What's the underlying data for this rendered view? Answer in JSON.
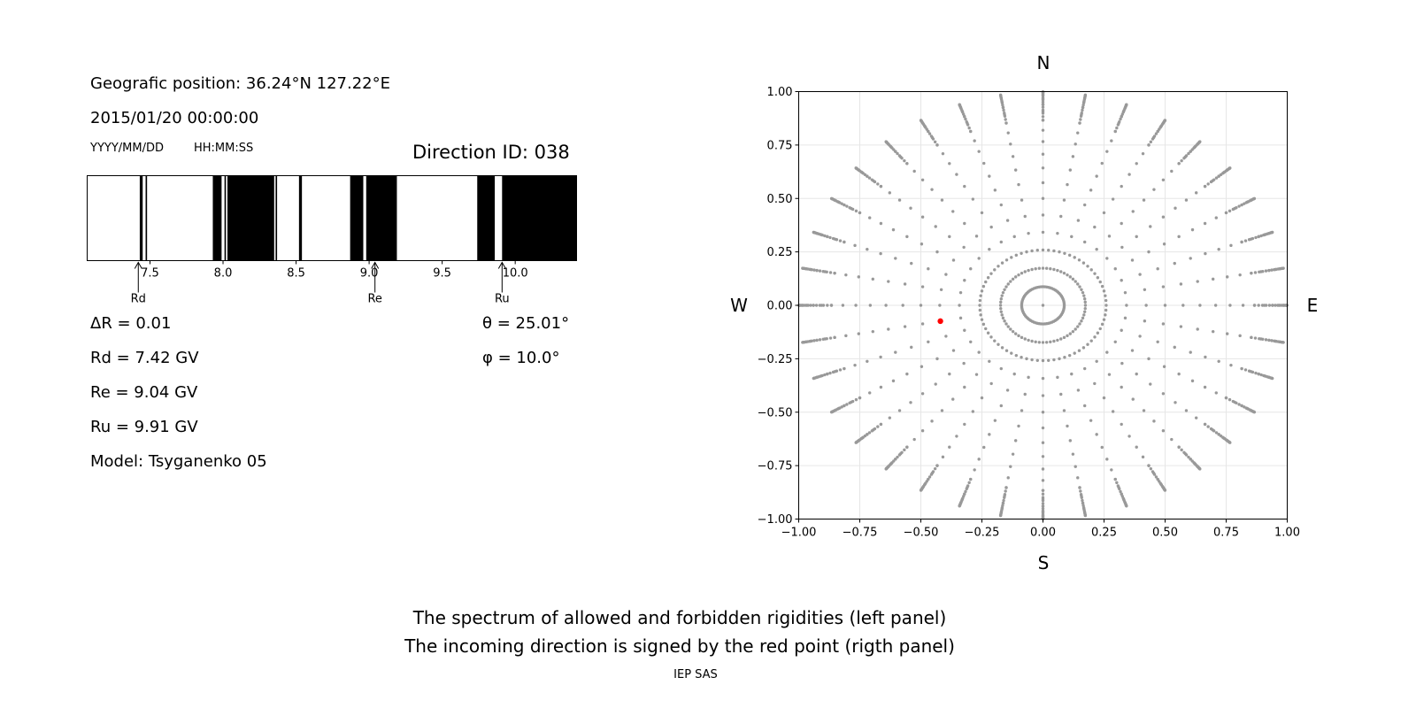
{
  "header": {
    "position": "Geografic position: 36.24°N 127.22°E",
    "datetime": "2015/01/20 00:00:00",
    "date_format": "YYYY/MM/DD",
    "time_format": "HH:MM:SS",
    "direction_id": "Direction ID: 038"
  },
  "results": {
    "delta_r": "ΔR = 0.01",
    "rd": "Rd = 7.42 GV",
    "re": "Re = 9.04 GV",
    "ru": "Ru = 9.91 GV",
    "model": "Model: Tsyganenko 05",
    "theta": "θ = 25.01°",
    "phi": "φ = 10.0°"
  },
  "caption": {
    "line1": "The spectrum of allowed and forbidden rigidities (left panel)",
    "line2": "The incoming direction is signed by the red point (rigth panel)",
    "credit": "IEP SAS"
  },
  "compass": {
    "north": "N",
    "south": "S",
    "west": "W",
    "east": "E"
  },
  "colors": {
    "forbidden": "#000000",
    "allowed": "#ffffff",
    "grid_points": "#999999",
    "direction_point": "#ff0000"
  },
  "chart_data": [
    {
      "type": "spectrum",
      "xlim": [
        7.07,
        10.42
      ],
      "x_ticks": [
        7.5,
        8.0,
        8.5,
        9.0,
        9.5,
        10.0
      ],
      "x_tick_labels": [
        "7.5",
        "8.0",
        "8.5",
        "9.0",
        "9.5",
        "10.0"
      ],
      "forbidden_bands": [
        [
          7.43,
          7.45
        ],
        [
          7.47,
          7.48
        ],
        [
          7.93,
          7.99
        ],
        [
          8.01,
          8.02
        ],
        [
          8.03,
          8.35
        ],
        [
          8.36,
          8.37
        ],
        [
          8.52,
          8.54
        ],
        [
          8.87,
          8.96
        ],
        [
          8.98,
          9.19
        ],
        [
          9.74,
          9.86
        ],
        [
          9.91,
          10.42
        ]
      ],
      "markers": [
        {
          "label": "Rd",
          "value": 7.42
        },
        {
          "label": "Re",
          "value": 9.04
        },
        {
          "label": "Ru",
          "value": 9.91
        }
      ]
    },
    {
      "type": "scatter",
      "xlim": [
        -1.0,
        1.0
      ],
      "ylim": [
        -1.0,
        1.0
      ],
      "x_ticks": [
        -1.0,
        -0.75,
        -0.5,
        -0.25,
        0.0,
        0.25,
        0.5,
        0.75,
        1.0
      ],
      "x_tick_labels": [
        "−1.00",
        "−0.75",
        "−0.50",
        "−0.25",
        "0.00",
        "0.25",
        "0.50",
        "0.75",
        "1.00"
      ],
      "y_ticks": [
        1.0,
        0.75,
        0.5,
        0.25,
        0.0,
        -0.25,
        -0.5,
        -0.75,
        -1.0
      ],
      "y_tick_labels": [
        "1.00",
        "0.75",
        "0.50",
        "0.25",
        "0.00",
        "−0.25",
        "−0.50",
        "−0.75",
        "−1.00"
      ],
      "grid": true,
      "grid_series": {
        "description_zenith_deg": [
          5,
          10,
          15,
          20,
          25,
          30,
          35,
          40,
          45,
          50,
          55,
          60,
          65,
          70,
          75,
          80,
          85
        ],
        "azimuths_deg_inner": [
          0,
          15,
          30,
          45,
          60,
          75,
          90,
          105,
          120,
          135,
          150,
          165,
          180,
          195,
          210,
          225,
          240,
          255,
          270,
          285,
          300,
          315,
          330,
          345
        ]
      },
      "highlight_point": {
        "x": -0.42,
        "y": -0.074
      }
    }
  ]
}
